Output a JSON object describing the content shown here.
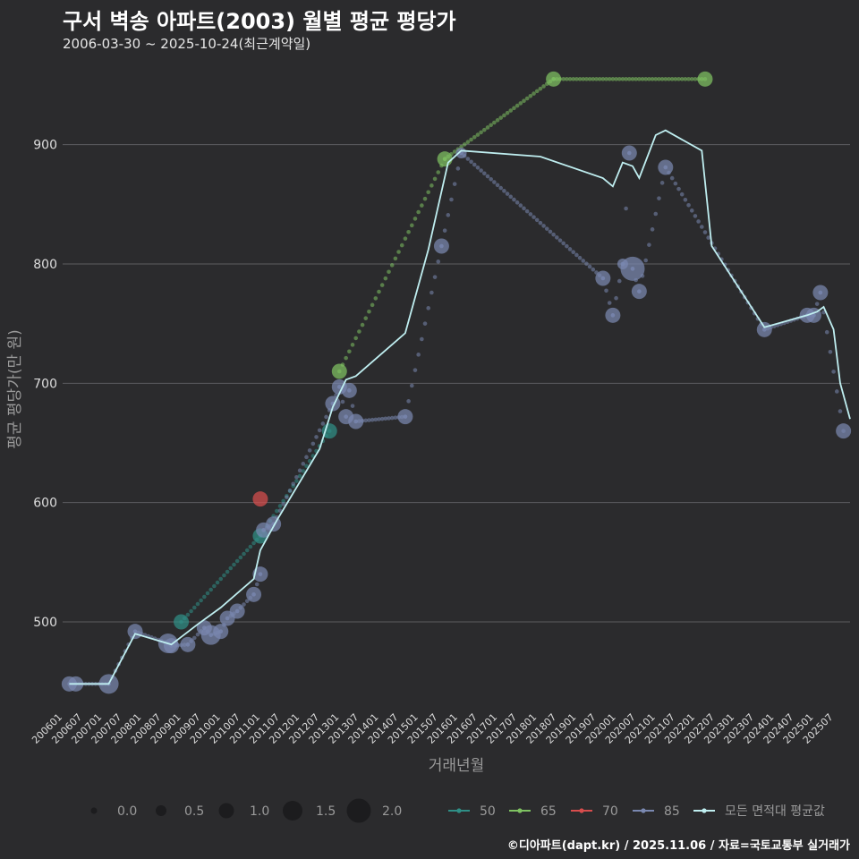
{
  "title": "구서 벽송 아파트(2003) 월별 평균 평당가",
  "subtitle": "2006-03-30 ~ 2025-10-24(최근계약일)",
  "caption": "©디아파트(dapt.kr) / 2025.11.06 / 자료=국토교통부 실거래가",
  "colors": {
    "background": "#2b2b2d",
    "grid": "#5d5d60",
    "s50": "#2f8f86",
    "s65": "#7fc262",
    "s70": "#d84d4d",
    "s85": "#7a88b0",
    "avg": "#bfeef0"
  },
  "chart_data": {
    "type": "scatter",
    "title": "구서 벽송 아파트(2003) 월별 평균 평당가",
    "xlabel": "거래년월",
    "ylabel": "평균 평당가(만 원)",
    "ylim": [
      425,
      965
    ],
    "yticks": [
      500,
      600,
      700,
      800,
      900
    ],
    "x_range": [
      "2006-01",
      "2025-12"
    ],
    "x_ticks": [
      "200601",
      "200607",
      "200701",
      "200707",
      "200801",
      "200807",
      "200901",
      "200907",
      "201001",
      "201007",
      "201101",
      "201107",
      "201201",
      "201207",
      "201301",
      "201307",
      "201401",
      "201407",
      "201501",
      "201507",
      "201601",
      "201607",
      "201701",
      "201707",
      "201801",
      "201807",
      "201901",
      "201907",
      "202001",
      "202007",
      "202101",
      "202107",
      "202201",
      "202207",
      "202301",
      "202307",
      "202401",
      "202407",
      "202501",
      "202507"
    ],
    "size_legend": {
      "title": "",
      "values": [
        0.0,
        0.5,
        1.0,
        1.5,
        2.0
      ]
    },
    "color_legend": [
      "50",
      "65",
      "70",
      "85",
      "모든 면적대 평균값"
    ],
    "series": [
      {
        "name": "50",
        "color_key": "s50",
        "points": [
          {
            "x": "2009-01",
            "y": 500,
            "size": 1.0
          },
          {
            "x": "2011-01",
            "y": 572,
            "size": 1.0
          },
          {
            "x": "2012-10",
            "y": 660,
            "size": 1.0
          }
        ]
      },
      {
        "name": "65",
        "color_key": "s65",
        "points": [
          {
            "x": "2013-01",
            "y": 710,
            "size": 1.0
          },
          {
            "x": "2015-09",
            "y": 888,
            "size": 1.0
          },
          {
            "x": "2018-06",
            "y": 955,
            "size": 1.0
          },
          {
            "x": "2022-04",
            "y": 955,
            "size": 1.0
          }
        ]
      },
      {
        "name": "70",
        "color_key": "s70",
        "points": [
          {
            "x": "2011-01",
            "y": 603,
            "size": 1.0
          }
        ]
      },
      {
        "name": "85",
        "color_key": "s85",
        "points": [
          {
            "x": "2006-03",
            "y": 448,
            "size": 1.0
          },
          {
            "x": "2006-05",
            "y": 448,
            "size": 1.0
          },
          {
            "x": "2007-03",
            "y": 448,
            "size": 1.5
          },
          {
            "x": "2007-11",
            "y": 492,
            "size": 1.0
          },
          {
            "x": "2008-09",
            "y": 482,
            "size": 1.5
          },
          {
            "x": "2008-10",
            "y": 480,
            "size": 1.0
          },
          {
            "x": "2009-03",
            "y": 481,
            "size": 1.0
          },
          {
            "x": "2009-08",
            "y": 495,
            "size": 1.0
          },
          {
            "x": "2009-10",
            "y": 489,
            "size": 1.5
          },
          {
            "x": "2010-01",
            "y": 492,
            "size": 1.0
          },
          {
            "x": "2010-03",
            "y": 503,
            "size": 1.0
          },
          {
            "x": "2010-06",
            "y": 509,
            "size": 1.0
          },
          {
            "x": "2010-11",
            "y": 523,
            "size": 1.0
          },
          {
            "x": "2011-01",
            "y": 540,
            "size": 1.0
          },
          {
            "x": "2011-02",
            "y": 577,
            "size": 1.0
          },
          {
            "x": "2011-05",
            "y": 582,
            "size": 1.0
          },
          {
            "x": "2012-11",
            "y": 683,
            "size": 1.0
          },
          {
            "x": "2013-01",
            "y": 697,
            "size": 1.0
          },
          {
            "x": "2013-03",
            "y": 672,
            "size": 1.0
          },
          {
            "x": "2013-04",
            "y": 694,
            "size": 1.0
          },
          {
            "x": "2013-06",
            "y": 668,
            "size": 1.0
          },
          {
            "x": "2014-09",
            "y": 672,
            "size": 1.0
          },
          {
            "x": "2015-08",
            "y": 815,
            "size": 1.0
          },
          {
            "x": "2016-02",
            "y": 893,
            "size": 0.5
          },
          {
            "x": "2019-09",
            "y": 788,
            "size": 1.0
          },
          {
            "x": "2019-12",
            "y": 757,
            "size": 1.0
          },
          {
            "x": "2020-03",
            "y": 800,
            "size": 0.5
          },
          {
            "x": "2020-05",
            "y": 893,
            "size": 1.0
          },
          {
            "x": "2020-06",
            "y": 796,
            "size": 2.0
          },
          {
            "x": "2020-08",
            "y": 777,
            "size": 1.0
          },
          {
            "x": "2021-04",
            "y": 881,
            "size": 1.0
          },
          {
            "x": "2023-10",
            "y": 745,
            "size": 1.0
          },
          {
            "x": "2024-11",
            "y": 757,
            "size": 1.0
          },
          {
            "x": "2025-01",
            "y": 757,
            "size": 1.0
          },
          {
            "x": "2025-03",
            "y": 776,
            "size": 1.0
          },
          {
            "x": "2025-10",
            "y": 660,
            "size": 1.0
          }
        ]
      }
    ],
    "average_line": {
      "name": "모든 면적대 평균값",
      "color_key": "avg",
      "points": [
        {
          "x": "2006-03",
          "y": 448
        },
        {
          "x": "2007-03",
          "y": 448
        },
        {
          "x": "2007-11",
          "y": 490
        },
        {
          "x": "2008-10",
          "y": 481
        },
        {
          "x": "2009-06",
          "y": 498
        },
        {
          "x": "2010-01",
          "y": 512
        },
        {
          "x": "2010-11",
          "y": 536
        },
        {
          "x": "2011-01",
          "y": 560
        },
        {
          "x": "2011-06",
          "y": 585
        },
        {
          "x": "2012-07",
          "y": 645
        },
        {
          "x": "2012-11",
          "y": 680
        },
        {
          "x": "2013-03",
          "y": 703
        },
        {
          "x": "2013-06",
          "y": 706
        },
        {
          "x": "2014-09",
          "y": 742
        },
        {
          "x": "2015-04",
          "y": 812
        },
        {
          "x": "2015-10",
          "y": 885
        },
        {
          "x": "2016-02",
          "y": 895
        },
        {
          "x": "2018-02",
          "y": 890
        },
        {
          "x": "2019-09",
          "y": 872
        },
        {
          "x": "2019-12",
          "y": 865
        },
        {
          "x": "2020-03",
          "y": 885
        },
        {
          "x": "2020-06",
          "y": 882
        },
        {
          "x": "2020-08",
          "y": 872
        },
        {
          "x": "2021-01",
          "y": 908
        },
        {
          "x": "2021-04",
          "y": 912
        },
        {
          "x": "2022-03",
          "y": 895
        },
        {
          "x": "2022-06",
          "y": 815
        },
        {
          "x": "2023-10",
          "y": 747
        },
        {
          "x": "2024-11",
          "y": 757
        },
        {
          "x": "2025-02",
          "y": 760
        },
        {
          "x": "2025-04",
          "y": 764
        },
        {
          "x": "2025-07",
          "y": 745
        },
        {
          "x": "2025-09",
          "y": 700
        },
        {
          "x": "2025-12",
          "y": 670
        }
      ]
    }
  }
}
